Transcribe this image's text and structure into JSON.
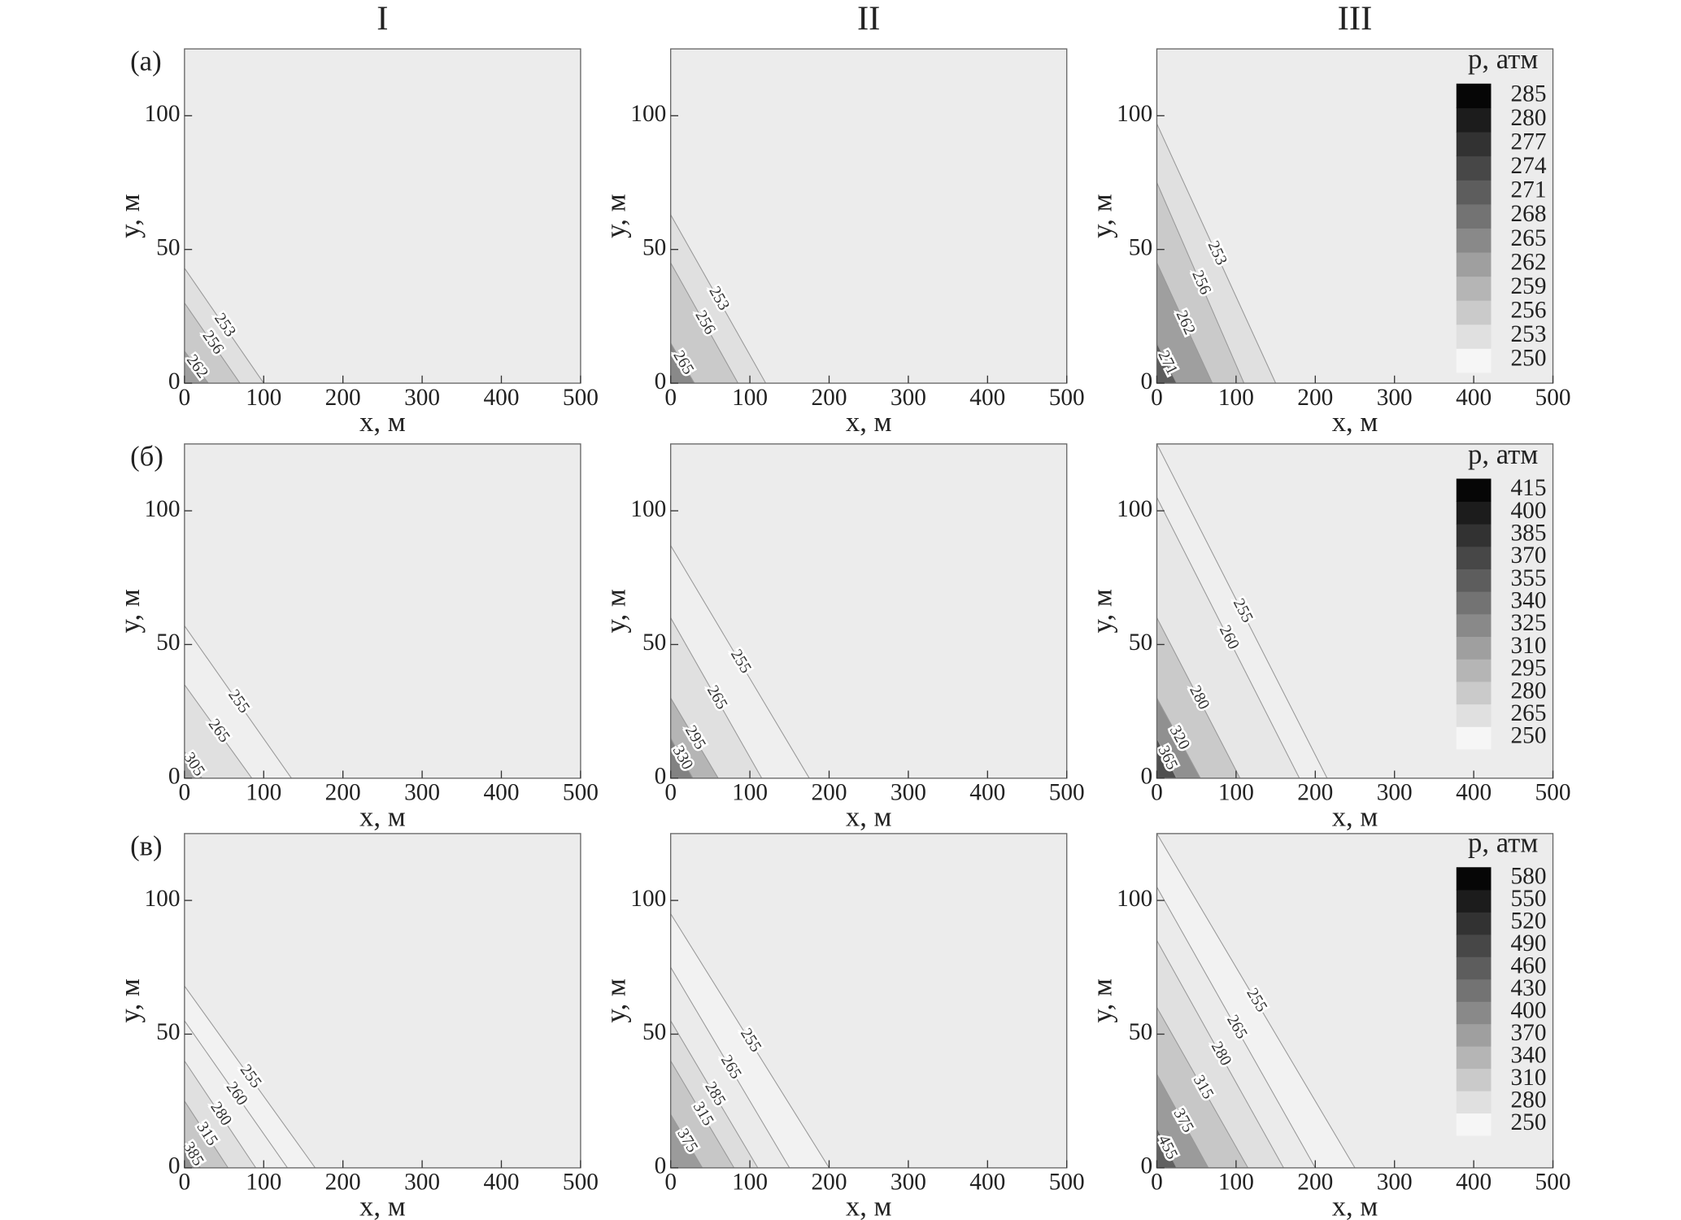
{
  "column_labels": [
    "I",
    "II",
    "III"
  ],
  "chart_data": [
    {
      "type": "contour",
      "panel_label": "(а)",
      "xlabel": "x, м",
      "ylabel": "y, м",
      "xlim": [
        0,
        500
      ],
      "ylim": [
        0,
        125
      ],
      "xticks": [
        0,
        100,
        200,
        300,
        400,
        500
      ],
      "yticks": [
        0,
        50,
        100
      ],
      "contours": [
        {
          "level": 253,
          "x0": 100,
          "y0": 43
        },
        {
          "level": 256,
          "x0": 70,
          "y0": 30
        },
        {
          "level": 262,
          "x0": 30,
          "y0": 12
        }
      ]
    },
    {
      "type": "contour",
      "xlabel": "x, м",
      "ylabel": "y, м",
      "xlim": [
        0,
        500
      ],
      "ylim": [
        0,
        125
      ],
      "xticks": [
        0,
        100,
        200,
        300,
        400,
        500
      ],
      "yticks": [
        0,
        50,
        100
      ],
      "contours": [
        {
          "level": 253,
          "x0": 120,
          "y0": 63
        },
        {
          "level": 256,
          "x0": 85,
          "y0": 45
        },
        {
          "level": 265,
          "x0": 30,
          "y0": 15
        }
      ]
    },
    {
      "type": "contour",
      "xlabel": "x, м",
      "ylabel": "y, м",
      "xlim": [
        0,
        500
      ],
      "ylim": [
        0,
        125
      ],
      "xticks": [
        0,
        100,
        200,
        300,
        400,
        500
      ],
      "yticks": [
        0,
        50,
        100
      ],
      "contours": [
        {
          "level": 253,
          "x0": 150,
          "y0": 97
        },
        {
          "level": 256,
          "x0": 110,
          "y0": 75
        },
        {
          "level": 262,
          "x0": 70,
          "y0": 45
        },
        {
          "level": 271,
          "x0": 25,
          "y0": 15
        }
      ],
      "colorbar": {
        "title": "p, атм",
        "ticks": [
          250,
          253,
          256,
          259,
          262,
          265,
          268,
          271,
          274,
          277,
          280,
          285
        ]
      }
    },
    {
      "type": "contour",
      "panel_label": "(б)",
      "xlabel": "x, м",
      "ylabel": "y, м",
      "xlim": [
        0,
        500
      ],
      "ylim": [
        0,
        125
      ],
      "xticks": [
        0,
        100,
        200,
        300,
        400,
        500
      ],
      "yticks": [
        0,
        50,
        100
      ],
      "contours": [
        {
          "level": 255,
          "x0": 135,
          "y0": 57
        },
        {
          "level": 265,
          "x0": 85,
          "y0": 35
        },
        {
          "level": 305,
          "x0": 22,
          "y0": 10
        }
      ]
    },
    {
      "type": "contour",
      "xlabel": "x, м",
      "ylabel": "y, м",
      "xlim": [
        0,
        500
      ],
      "ylim": [
        0,
        125
      ],
      "xticks": [
        0,
        100,
        200,
        300,
        400,
        500
      ],
      "yticks": [
        0,
        50,
        100
      ],
      "contours": [
        {
          "level": 255,
          "x0": 175,
          "y0": 87
        },
        {
          "level": 265,
          "x0": 115,
          "y0": 60
        },
        {
          "level": 295,
          "x0": 60,
          "y0": 30
        },
        {
          "level": 330,
          "x0": 28,
          "y0": 15
        }
      ]
    },
    {
      "type": "contour",
      "xlabel": "x, м",
      "ylabel": "y, м",
      "xlim": [
        0,
        500
      ],
      "ylim": [
        0,
        125
      ],
      "xticks": [
        0,
        100,
        200,
        300,
        400,
        500
      ],
      "yticks": [
        0,
        50,
        100
      ],
      "contours": [
        {
          "level": 255,
          "x0": 215,
          "y0": 125
        },
        {
          "level": 260,
          "x0": 180,
          "y0": 105
        },
        {
          "level": 280,
          "x0": 105,
          "y0": 60
        },
        {
          "level": 320,
          "x0": 55,
          "y0": 30
        },
        {
          "level": 365,
          "x0": 25,
          "y0": 15
        }
      ],
      "colorbar": {
        "title": "p, атм",
        "ticks": [
          250,
          265,
          280,
          295,
          310,
          325,
          340,
          355,
          370,
          385,
          400,
          415
        ]
      }
    },
    {
      "type": "contour",
      "panel_label": "(в)",
      "xlabel": "x, м",
      "ylabel": "y, м",
      "xlim": [
        0,
        500
      ],
      "ylim": [
        0,
        125
      ],
      "xticks": [
        0,
        100,
        200,
        300,
        400,
        500
      ],
      "yticks": [
        0,
        50,
        100
      ],
      "contours": [
        {
          "level": 255,
          "x0": 165,
          "y0": 68
        },
        {
          "level": 260,
          "x0": 130,
          "y0": 55
        },
        {
          "level": 280,
          "x0": 90,
          "y0": 40
        },
        {
          "level": 315,
          "x0": 55,
          "y0": 25
        },
        {
          "level": 385,
          "x0": 20,
          "y0": 10
        }
      ]
    },
    {
      "type": "contour",
      "xlabel": "x, м",
      "ylabel": "y, м",
      "xlim": [
        0,
        500
      ],
      "ylim": [
        0,
        125
      ],
      "xticks": [
        0,
        100,
        200,
        300,
        400,
        500
      ],
      "yticks": [
        0,
        50,
        100
      ],
      "contours": [
        {
          "level": 255,
          "x0": 200,
          "y0": 95
        },
        {
          "level": 265,
          "x0": 150,
          "y0": 75
        },
        {
          "level": 285,
          "x0": 110,
          "y0": 55
        },
        {
          "level": 315,
          "x0": 80,
          "y0": 40
        },
        {
          "level": 375,
          "x0": 40,
          "y0": 20
        }
      ]
    },
    {
      "type": "contour",
      "xlabel": "x, м",
      "ylabel": "y, м",
      "xlim": [
        0,
        500
      ],
      "ylim": [
        0,
        125
      ],
      "xticks": [
        0,
        100,
        200,
        300,
        400,
        500
      ],
      "yticks": [
        0,
        50,
        100
      ],
      "contours": [
        {
          "level": 255,
          "x0": 250,
          "y0": 125
        },
        {
          "level": 265,
          "x0": 200,
          "y0": 105
        },
        {
          "level": 280,
          "x0": 160,
          "y0": 85
        },
        {
          "level": 315,
          "x0": 115,
          "y0": 60
        },
        {
          "level": 375,
          "x0": 65,
          "y0": 35
        },
        {
          "level": 455,
          "x0": 25,
          "y0": 15
        }
      ],
      "colorbar": {
        "title": "p, атм",
        "ticks": [
          250,
          280,
          310,
          340,
          370,
          400,
          430,
          460,
          490,
          520,
          550,
          580
        ]
      }
    }
  ]
}
